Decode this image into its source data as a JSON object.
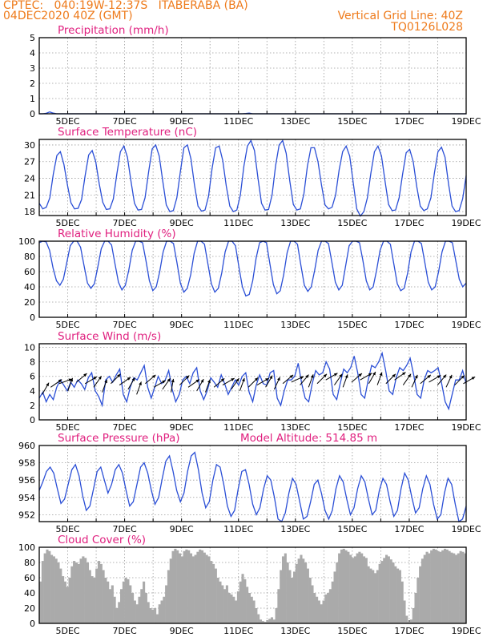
{
  "header": {
    "line1_left": "CPTEC:   040:19W-12:37S   ITABERABA (BA)",
    "line2_left": "04DEC2020 40Z (GMT)",
    "line2_right": "Vertical Grid Line: 40Z",
    "line3_right": "TQ0126L028"
  },
  "colors": {
    "header": "#ee7a1a",
    "title": "#e0207f",
    "line": "#2b4fd6",
    "cloud": "#aaaaaa",
    "vector": "#000000"
  },
  "chart_data": [
    {
      "type": "line",
      "title": "Precipitation (mm/h)",
      "x_ticks": [
        "5DEC",
        "7DEC",
        "9DEC",
        "11DEC",
        "13DEC",
        "15DEC",
        "17DEC",
        "19DEC"
      ],
      "x_range_days": [
        4.0,
        19.0
      ],
      "y_ticks": [
        0,
        1,
        2,
        3,
        4,
        5
      ],
      "ylim": [
        0,
        5
      ],
      "values": [
        0,
        0,
        0.03,
        0.12,
        0.04,
        0,
        0,
        0,
        0,
        0,
        0,
        0,
        0,
        0,
        0,
        0,
        0,
        0,
        0,
        0,
        0,
        0,
        0,
        0,
        0,
        0,
        0,
        0,
        0,
        0,
        0,
        0,
        0,
        0,
        0,
        0,
        0,
        0,
        0,
        0,
        0,
        0,
        0,
        0,
        0,
        0,
        0,
        0,
        0,
        0,
        0,
        0,
        0,
        0,
        0,
        0,
        0,
        0,
        0,
        0.02,
        0.05,
        0,
        0,
        0,
        0,
        0,
        0,
        0,
        0,
        0,
        0,
        0,
        0,
        0,
        0,
        0,
        0,
        0,
        0,
        0,
        0,
        0,
        0,
        0,
        0,
        0,
        0,
        0,
        0,
        0,
        0,
        0,
        0,
        0,
        0,
        0,
        0,
        0,
        0,
        0,
        0,
        0,
        0,
        0,
        0,
        0,
        0,
        0,
        0,
        0,
        0,
        0,
        0,
        0,
        0,
        0,
        0,
        0,
        0,
        0,
        0,
        0,
        0
      ]
    },
    {
      "type": "line",
      "title": "Surface Temperature (nC)",
      "x_ticks": [
        "5DEC",
        "7DEC",
        "9DEC",
        "11DEC",
        "13DEC",
        "15DEC",
        "17DEC",
        "19DEC"
      ],
      "x_range_days": [
        4.0,
        19.0
      ],
      "y_ticks": [
        18,
        21,
        24,
        27,
        30
      ],
      "ylim": [
        17.3,
        31
      ],
      "values": [
        19.5,
        18.5,
        18.8,
        20.5,
        24.8,
        28.1,
        28.8,
        26.5,
        22.8,
        19.6,
        18.5,
        18.6,
        20.2,
        24.5,
        28.2,
        29.0,
        27.0,
        23.0,
        19.7,
        18.4,
        18.5,
        20.3,
        24.8,
        28.8,
        29.8,
        27.8,
        23.5,
        19.5,
        18.3,
        18.4,
        20.5,
        25.2,
        29.3,
        30.0,
        28.0,
        23.5,
        19.2,
        18.0,
        18.2,
        20.5,
        25.2,
        29.5,
        30.0,
        27.5,
        22.8,
        19.0,
        18.1,
        18.3,
        20.8,
        25.8,
        29.5,
        29.8,
        27.2,
        22.6,
        19.0,
        18.0,
        18.3,
        21.0,
        26.2,
        29.8,
        30.8,
        29.0,
        24.0,
        19.5,
        18.3,
        18.4,
        21.0,
        26.3,
        30.0,
        30.8,
        28.5,
        23.5,
        19.3,
        18.3,
        18.5,
        21.2,
        26.2,
        29.5,
        29.5,
        27.0,
        22.8,
        19.2,
        18.5,
        18.8,
        21.0,
        25.5,
        28.8,
        29.8,
        28.0,
        23.2,
        18.5,
        17.2,
        18.0,
        20.5,
        25.0,
        28.8,
        29.8,
        28.0,
        23.5,
        19.3,
        18.2,
        18.3,
        20.5,
        24.8,
        28.6,
        29.2,
        27.0,
        22.5,
        19.0,
        18.2,
        18.5,
        20.5,
        25.0,
        28.8,
        29.6,
        27.8,
        23.0,
        19.0,
        18.0,
        18.2,
        20.3,
        24.5
      ]
    },
    {
      "type": "line",
      "title": "Relative Humidity (%)",
      "x_ticks": [
        "5DEC",
        "7DEC",
        "9DEC",
        "11DEC",
        "13DEC",
        "15DEC",
        "17DEC",
        "19DEC"
      ],
      "x_range_days": [
        4.0,
        19.0
      ],
      "y_ticks": [
        0,
        20,
        40,
        60,
        80,
        100
      ],
      "ylim": [
        0,
        100
      ],
      "values": [
        98,
        100,
        99,
        88,
        65,
        48,
        42,
        50,
        72,
        94,
        100,
        100,
        92,
        68,
        45,
        38,
        44,
        66,
        90,
        100,
        100,
        95,
        70,
        46,
        36,
        42,
        62,
        88,
        100,
        100,
        98,
        74,
        48,
        35,
        40,
        60,
        86,
        100,
        100,
        97,
        72,
        45,
        33,
        38,
        56,
        84,
        100,
        100,
        96,
        70,
        44,
        33,
        38,
        58,
        86,
        100,
        100,
        94,
        66,
        40,
        28,
        30,
        48,
        78,
        98,
        100,
        98,
        70,
        43,
        31,
        35,
        56,
        85,
        100,
        100,
        96,
        68,
        42,
        34,
        40,
        62,
        88,
        100,
        100,
        97,
        72,
        46,
        36,
        42,
        68,
        94,
        100,
        100,
        98,
        75,
        48,
        36,
        40,
        62,
        88,
        100,
        100,
        96,
        70,
        44,
        35,
        38,
        58,
        86,
        100,
        100,
        97,
        72,
        46,
        36,
        40,
        60,
        86,
        100,
        100,
        98,
        74,
        50,
        40,
        45
      ]
    },
    {
      "type": "line",
      "title": "Surface Wind (m/s)",
      "x_ticks": [
        "5DEC",
        "7DEC",
        "9DEC",
        "11DEC",
        "13DEC",
        "15DEC",
        "17DEC",
        "19DEC"
      ],
      "x_range_days": [
        4.0,
        19.0
      ],
      "y_ticks": [
        0,
        2,
        4,
        6,
        8,
        10
      ],
      "ylim": [
        0,
        10.5
      ],
      "values": [
        3.0,
        3.8,
        2.5,
        3.5,
        2.8,
        4.5,
        5.5,
        4.8,
        4.0,
        5.2,
        4.5,
        5.5,
        5.0,
        4.2,
        5.8,
        6.5,
        4.0,
        3.2,
        2.0,
        5.5,
        6.0,
        5.2,
        6.2,
        7.0,
        3.5,
        2.5,
        4.5,
        5.8,
        5.5,
        6.5,
        7.5,
        4.5,
        3.0,
        4.5,
        6.0,
        5.0,
        5.5,
        6.8,
        4.2,
        2.5,
        3.5,
        5.5,
        6.0,
        5.0,
        6.5,
        7.2,
        4.0,
        2.8,
        4.0,
        5.8,
        5.2,
        4.5,
        6.2,
        5.0,
        3.5,
        4.5,
        5.5,
        4.8,
        6.0,
        6.5,
        3.8,
        2.5,
        4.8,
        6.2,
        5.0,
        4.8,
        6.5,
        6.8,
        3.0,
        2.0,
        4.0,
        5.5,
        5.5,
        6.0,
        7.8,
        5.0,
        3.0,
        2.5,
        5.0,
        6.8,
        6.2,
        6.5,
        8.0,
        7.0,
        3.5,
        2.8,
        5.0,
        7.0,
        6.5,
        7.2,
        8.8,
        6.5,
        3.5,
        3.0,
        5.5,
        7.5,
        7.2,
        8.0,
        9.2,
        6.8,
        4.0,
        3.5,
        5.8,
        7.2,
        6.8,
        7.5,
        8.5,
        6.2,
        3.5,
        3.0,
        5.5,
        6.8,
        6.5,
        6.8,
        7.2,
        5.0,
        2.5,
        1.5,
        3.5,
        5.5,
        5.5,
        6.8,
        5.0
      ],
      "vectors_deg": [
        210,
        235,
        250,
        200,
        230,
        240,
        215,
        200,
        225,
        235,
        210,
        200,
        230,
        240,
        215,
        190,
        225,
        235,
        210,
        200,
        230,
        240,
        215,
        200,
        225,
        240,
        210,
        205,
        230,
        245,
        220,
        200,
        225,
        240,
        215,
        200,
        230,
        240,
        210,
        200,
        225,
        235,
        215,
        205,
        230,
        240,
        220,
        205,
        225,
        240
      ],
      "vector_speeds": [
        3.5,
        4.5,
        5.0,
        4.0,
        5.2,
        5.0,
        4.5,
        3.8,
        5.0,
        4.8,
        4.2,
        3.5,
        5.0,
        4.5,
        4.2,
        3.8,
        4.8,
        4.5,
        4.0,
        3.8,
        4.5,
        4.8,
        4.2,
        4.0,
        4.5,
        4.8,
        4.5,
        4.2,
        5.0,
        5.2,
        4.8,
        4.5,
        5.0,
        5.5,
        4.8,
        4.5,
        5.2,
        5.5,
        5.0,
        4.8,
        5.0,
        5.5,
        4.8,
        4.5,
        5.0,
        5.2,
        4.8,
        4.5,
        4.8,
        5.0
      ]
    },
    {
      "type": "line",
      "title": "Surface Pressure (hPa)",
      "annotation": "Model Altitude: 514.85 m",
      "x_ticks": [
        "5DEC",
        "7DEC",
        "9DEC",
        "11DEC",
        "13DEC",
        "15DEC",
        "17DEC",
        "19DEC"
      ],
      "x_range_days": [
        4.0,
        19.0
      ],
      "y_ticks": [
        952,
        954,
        956,
        958,
        960
      ],
      "ylim": [
        951.2,
        960
      ],
      "values": [
        954.8,
        955.8,
        957.0,
        957.5,
        956.8,
        955.0,
        953.3,
        953.8,
        955.5,
        957.2,
        957.8,
        956.5,
        954.2,
        952.5,
        953.0,
        955.0,
        957.0,
        957.5,
        956.0,
        954.5,
        955.5,
        957.2,
        957.8,
        956.8,
        954.8,
        953.0,
        953.5,
        955.5,
        957.5,
        958.0,
        956.8,
        954.8,
        953.2,
        954.0,
        956.2,
        958.2,
        958.8,
        957.0,
        954.8,
        953.5,
        954.5,
        957.0,
        958.8,
        959.2,
        957.2,
        954.5,
        952.8,
        953.5,
        956.0,
        957.8,
        957.5,
        955.5,
        953.0,
        951.8,
        952.5,
        955.0,
        957.0,
        957.2,
        955.5,
        953.2,
        952.0,
        952.8,
        955.0,
        956.5,
        956.0,
        954.0,
        951.5,
        951.2,
        952.2,
        954.5,
        956.2,
        955.5,
        953.5,
        951.5,
        951.8,
        953.5,
        955.5,
        956.0,
        954.5,
        952.5,
        951.5,
        952.5,
        955.0,
        956.5,
        955.8,
        953.8,
        952.0,
        952.8,
        955.0,
        956.5,
        955.8,
        953.8,
        952.0,
        952.5,
        954.8,
        956.2,
        955.5,
        953.5,
        951.8,
        952.5,
        955.0,
        956.8,
        956.0,
        954.0,
        952.2,
        952.8,
        955.0,
        956.5,
        955.5,
        953.2,
        951.5,
        952.0,
        954.5,
        956.2,
        955.5,
        953.2,
        951.2,
        951.5,
        953.0
      ]
    },
    {
      "type": "bar",
      "title": "Cloud Cover (%)",
      "x_ticks": [
        "5DEC",
        "7DEC",
        "9DEC",
        "11DEC",
        "13DEC",
        "15DEC",
        "17DEC",
        "19DEC"
      ],
      "x_range_days": [
        4.0,
        19.0
      ],
      "y_ticks": [
        0,
        20,
        40,
        60,
        80,
        100
      ],
      "ylim": [
        0,
        100
      ],
      "values": [
        55,
        82,
        92,
        97,
        95,
        90,
        88,
        85,
        80,
        72,
        62,
        55,
        48,
        60,
        75,
        82,
        80,
        78,
        85,
        88,
        86,
        80,
        70,
        62,
        60,
        72,
        82,
        78,
        70,
        60,
        55,
        45,
        50,
        35,
        20,
        28,
        45,
        55,
        60,
        58,
        50,
        40,
        30,
        25,
        35,
        45,
        55,
        40,
        28,
        20,
        18,
        20,
        12,
        25,
        30,
        35,
        50,
        70,
        85,
        95,
        98,
        96,
        92,
        88,
        95,
        97,
        96,
        92,
        88,
        90,
        94,
        97,
        96,
        93,
        90,
        88,
        82,
        78,
        72,
        60,
        55,
        50,
        45,
        50,
        40,
        38,
        35,
        30,
        42,
        55,
        65,
        58,
        48,
        40,
        35,
        30,
        20,
        12,
        5,
        3,
        2,
        4,
        6,
        8,
        5,
        20,
        45,
        70,
        88,
        92,
        80,
        70,
        60,
        68,
        78,
        85,
        90,
        85,
        80,
        72,
        60,
        50,
        40,
        35,
        30,
        25,
        30,
        38,
        40,
        45,
        55,
        68,
        80,
        92,
        97,
        98,
        96,
        94,
        90,
        86,
        88,
        92,
        94,
        92,
        88,
        86,
        75,
        72,
        70,
        66,
        70,
        78,
        82,
        86,
        90,
        88,
        84,
        80,
        75,
        72,
        70,
        55,
        30,
        10,
        2,
        5,
        20,
        40,
        60,
        75,
        85,
        90,
        94,
        92,
        96,
        98,
        97,
        95,
        94,
        96,
        98,
        97,
        95,
        93,
        92,
        90,
        92,
        95,
        94,
        92
      ]
    }
  ]
}
